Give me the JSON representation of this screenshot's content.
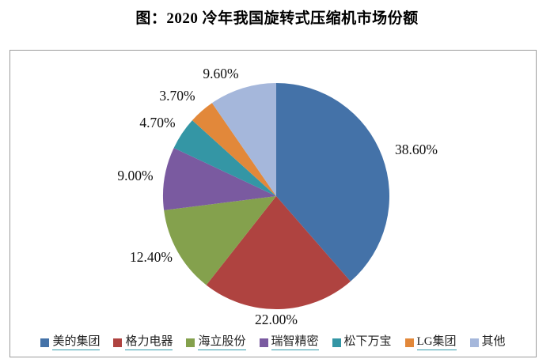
{
  "title": "图：2020 冷年我国旋转式压缩机市场份额",
  "chart_data": {
    "type": "pie",
    "title": "2020 冷年我国旋转式压缩机市场份额",
    "unit": "percent",
    "start_angle_deg": 0,
    "direction": "clockwise",
    "legend_position": "bottom",
    "slices": [
      {
        "label": "美的集团",
        "value": 38.6,
        "display": "38.60%",
        "color": "#4472a8",
        "legend_underline": true
      },
      {
        "label": "格力电器",
        "value": 22.0,
        "display": "22.00%",
        "color": "#af4340",
        "legend_underline": true
      },
      {
        "label": "海立股份",
        "value": 12.4,
        "display": "12.40%",
        "color": "#84a14d",
        "legend_underline": true
      },
      {
        "label": "瑞智精密",
        "value": 9.0,
        "display": "9.00%",
        "color": "#7a5aa0",
        "legend_underline": true
      },
      {
        "label": "松下万宝",
        "value": 4.7,
        "display": "4.70%",
        "color": "#3496a5",
        "legend_underline": false
      },
      {
        "label": "LG集团",
        "value": 3.7,
        "display": "3.70%",
        "color": "#e2883a",
        "legend_underline": true
      },
      {
        "label": "其他",
        "value": 9.6,
        "display": "9.60%",
        "color": "#a5b7db",
        "legend_underline": false
      }
    ]
  },
  "styles": {
    "underline_color": "#2f9aab",
    "border_color": "#9c9c9c",
    "text_color": "#111111"
  }
}
